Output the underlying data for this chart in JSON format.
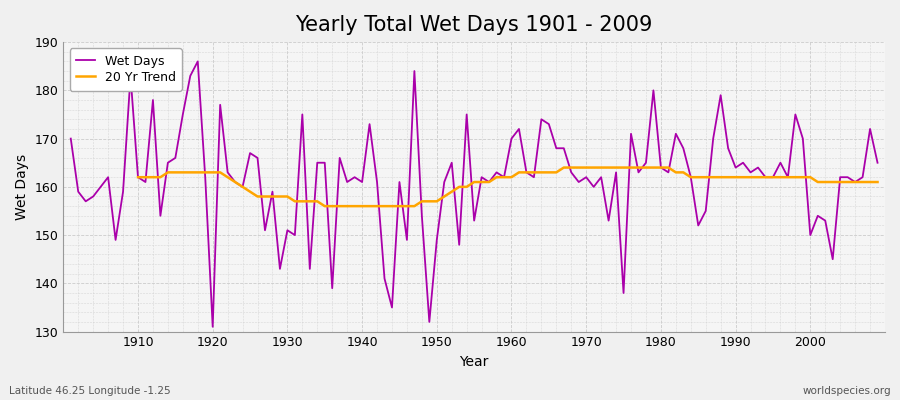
{
  "title": "Yearly Total Wet Days 1901 - 2009",
  "xlabel": "Year",
  "ylabel": "Wet Days",
  "footnote_left": "Latitude 46.25 Longitude -1.25",
  "footnote_right": "worldspecies.org",
  "ylim": [
    130,
    190
  ],
  "years": [
    1901,
    1902,
    1903,
    1904,
    1905,
    1906,
    1907,
    1908,
    1909,
    1910,
    1911,
    1912,
    1913,
    1914,
    1915,
    1916,
    1917,
    1918,
    1919,
    1920,
    1921,
    1922,
    1923,
    1924,
    1925,
    1926,
    1927,
    1928,
    1929,
    1930,
    1931,
    1932,
    1933,
    1934,
    1935,
    1936,
    1937,
    1938,
    1939,
    1940,
    1941,
    1942,
    1943,
    1944,
    1945,
    1946,
    1947,
    1948,
    1949,
    1950,
    1951,
    1952,
    1953,
    1954,
    1955,
    1956,
    1957,
    1958,
    1959,
    1960,
    1961,
    1962,
    1963,
    1964,
    1965,
    1966,
    1967,
    1968,
    1969,
    1970,
    1971,
    1972,
    1973,
    1974,
    1975,
    1976,
    1977,
    1978,
    1979,
    1980,
    1981,
    1982,
    1983,
    1984,
    1985,
    1986,
    1987,
    1988,
    1989,
    1990,
    1991,
    1992,
    1993,
    1994,
    1995,
    1996,
    1997,
    1998,
    1999,
    2000,
    2001,
    2002,
    2003,
    2004,
    2005,
    2006,
    2007,
    2008,
    2009
  ],
  "wet_days": [
    170,
    159,
    157,
    158,
    160,
    162,
    149,
    159,
    183,
    162,
    161,
    178,
    154,
    165,
    166,
    175,
    183,
    186,
    162,
    131,
    177,
    163,
    161,
    160,
    167,
    166,
    151,
    159,
    143,
    151,
    150,
    175,
    143,
    165,
    165,
    139,
    166,
    161,
    162,
    161,
    173,
    161,
    141,
    135,
    161,
    149,
    184,
    154,
    132,
    149,
    161,
    165,
    148,
    175,
    153,
    162,
    161,
    163,
    162,
    170,
    172,
    163,
    162,
    174,
    173,
    168,
    168,
    163,
    161,
    162,
    160,
    162,
    153,
    163,
    138,
    171,
    163,
    165,
    180,
    164,
    163,
    171,
    168,
    162,
    152,
    155,
    170,
    179,
    168,
    164,
    165,
    163,
    164,
    162,
    162,
    165,
    162,
    175,
    170,
    150,
    154,
    153,
    145,
    162,
    162,
    161,
    162,
    172,
    165
  ],
  "trend": [
    null,
    null,
    null,
    null,
    null,
    null,
    null,
    null,
    null,
    162,
    162,
    162,
    162,
    163,
    163,
    163,
    163,
    163,
    163,
    163,
    163,
    162,
    161,
    160,
    159,
    158,
    158,
    158,
    158,
    158,
    157,
    157,
    157,
    157,
    156,
    156,
    156,
    156,
    156,
    156,
    156,
    156,
    156,
    156,
    156,
    156,
    156,
    157,
    157,
    157,
    158,
    159,
    160,
    160,
    161,
    161,
    161,
    162,
    162,
    162,
    163,
    163,
    163,
    163,
    163,
    163,
    164,
    164,
    164,
    164,
    164,
    164,
    164,
    164,
    164,
    164,
    164,
    164,
    164,
    164,
    164,
    163,
    163,
    162,
    162,
    162,
    162,
    162,
    162,
    162,
    162,
    162,
    162,
    162,
    162,
    162,
    162,
    162,
    162,
    162,
    161,
    161,
    161,
    161,
    161,
    161,
    161,
    161,
    161
  ],
  "wet_days_color": "#AA00AA",
  "trend_color": "#FFA500",
  "fig_bg_color": "#F0F0F0",
  "plot_bg_color": "#F5F5F5",
  "grid_color": "#CCCCCC",
  "title_fontsize": 15,
  "label_fontsize": 10,
  "tick_fontsize": 9,
  "legend_fontsize": 9,
  "wet_days_linewidth": 1.3,
  "trend_linewidth": 1.8
}
